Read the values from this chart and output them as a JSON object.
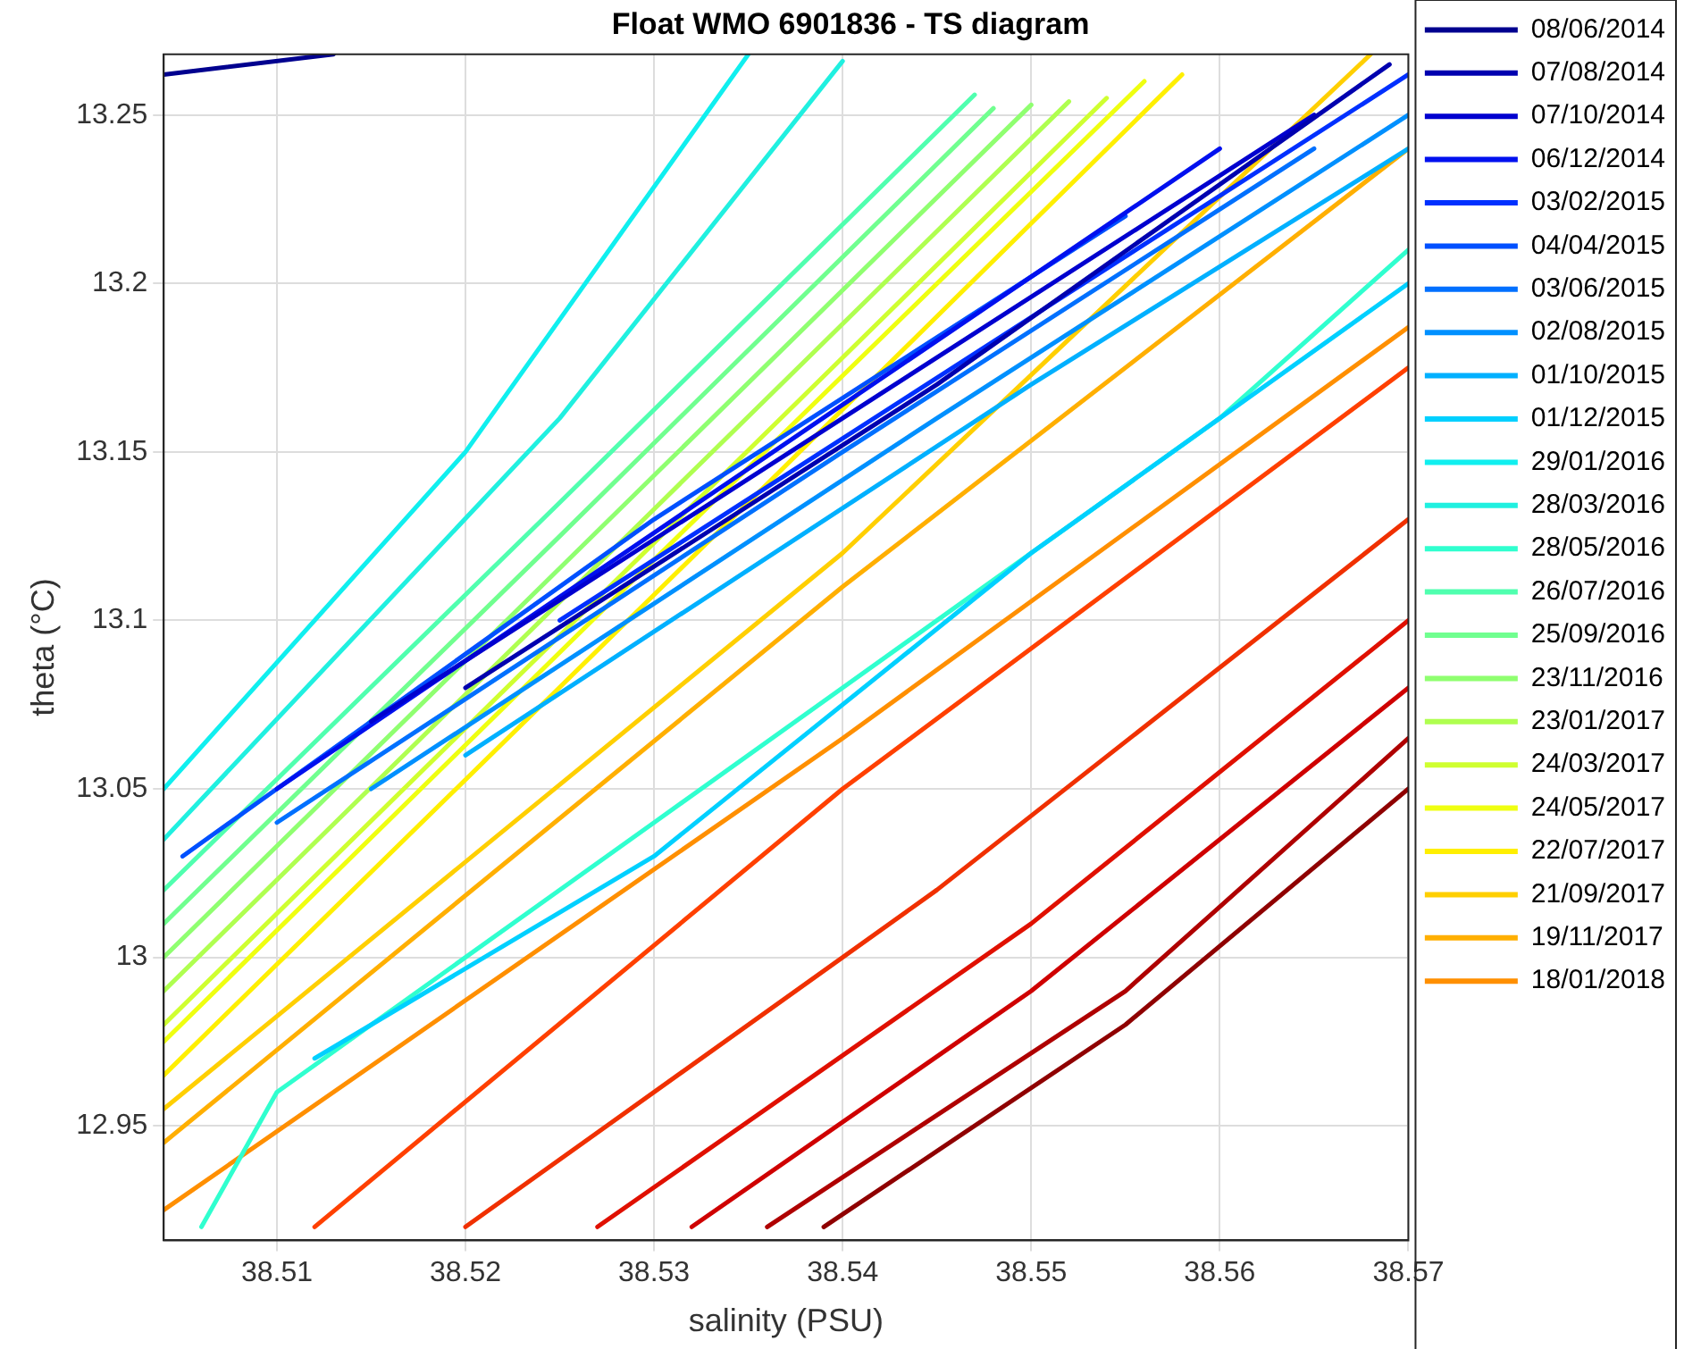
{
  "chart_data": {
    "type": "line",
    "title": "Float WMO 6901836 - TS diagram",
    "xlabel": "salinity (PSU)",
    "ylabel": "theta (°C)",
    "xlim": [
      38.504,
      38.57
    ],
    "ylim": [
      12.916,
      13.268
    ],
    "xticks": [
      38.51,
      38.52,
      38.53,
      38.54,
      38.55,
      38.56,
      38.57
    ],
    "yticks": [
      12.95,
      13,
      13.05,
      13.1,
      13.15,
      13.2,
      13.25
    ],
    "grid": true,
    "legend": "right",
    "marker": "none",
    "line_style": "solid",
    "series": [
      {
        "name": "08/06/2014",
        "color": "#00008f",
        "x": [
          38.504,
          38.513
        ],
        "values": [
          13.262,
          13.268
        ]
      },
      {
        "name": "07/08/2014",
        "color": "#0000af",
        "x": [
          38.52,
          38.545,
          38.569
        ],
        "values": [
          13.08,
          13.17,
          13.265
        ]
      },
      {
        "name": "07/10/2014",
        "color": "#0000cf",
        "x": [
          38.515,
          38.54,
          38.565
        ],
        "values": [
          13.07,
          13.16,
          13.25
        ]
      },
      {
        "name": "06/12/2014",
        "color": "#0010ef",
        "x": [
          38.51,
          38.535,
          38.56
        ],
        "values": [
          13.05,
          13.145,
          13.24
        ]
      },
      {
        "name": "03/02/2015",
        "color": "#0030ff",
        "x": [
          38.525,
          38.55,
          38.57
        ],
        "values": [
          13.1,
          13.19,
          13.262
        ]
      },
      {
        "name": "04/04/2015",
        "color": "#0050ff",
        "x": [
          38.505,
          38.53,
          38.555
        ],
        "values": [
          13.03,
          13.13,
          13.22
        ]
      },
      {
        "name": "03/06/2015",
        "color": "#0070ff",
        "x": [
          38.51,
          38.54,
          38.565
        ],
        "values": [
          13.04,
          13.15,
          13.24
        ]
      },
      {
        "name": "02/08/2015",
        "color": "#0090ff",
        "x": [
          38.515,
          38.545,
          38.57
        ],
        "values": [
          13.05,
          13.16,
          13.25
        ]
      },
      {
        "name": "01/10/2015",
        "color": "#00b0ff",
        "x": [
          38.52,
          38.55,
          38.57
        ],
        "values": [
          13.06,
          13.17,
          13.24
        ]
      },
      {
        "name": "01/12/2015",
        "color": "#00d0ff",
        "x": [
          38.512,
          38.53,
          38.55,
          38.57
        ],
        "values": [
          12.97,
          13.03,
          13.12,
          13.2
        ]
      },
      {
        "name": "29/01/2016",
        "color": "#10efef",
        "x": [
          38.504,
          38.52,
          38.535
        ],
        "values": [
          13.05,
          13.15,
          13.268
        ]
      },
      {
        "name": "28/03/2016",
        "color": "#20f0e0",
        "x": [
          38.504,
          38.525,
          38.54
        ],
        "values": [
          13.035,
          13.16,
          13.266
        ]
      },
      {
        "name": "28/05/2016",
        "color": "#30ffcf",
        "x": [
          38.506,
          38.51,
          38.53,
          38.56,
          38.57
        ],
        "values": [
          12.92,
          12.96,
          13.04,
          13.16,
          13.21
        ]
      },
      {
        "name": "26/07/2016",
        "color": "#50ffaf",
        "x": [
          38.504,
          38.525,
          38.547
        ],
        "values": [
          13.02,
          13.135,
          13.256
        ]
      },
      {
        "name": "25/09/2016",
        "color": "#70ff8f",
        "x": [
          38.504,
          38.525,
          38.548
        ],
        "values": [
          13.01,
          13.125,
          13.252
        ]
      },
      {
        "name": "23/11/2016",
        "color": "#8fff70",
        "x": [
          38.504,
          38.53,
          38.55
        ],
        "values": [
          13,
          13.143,
          13.253
        ]
      },
      {
        "name": "23/01/2017",
        "color": "#afff50",
        "x": [
          38.504,
          38.53,
          38.552
        ],
        "values": [
          12.99,
          13.133,
          13.254
        ]
      },
      {
        "name": "24/03/2017",
        "color": "#cfff30",
        "x": [
          38.504,
          38.53,
          38.554
        ],
        "values": [
          12.98,
          13.123,
          13.255
        ]
      },
      {
        "name": "24/05/2017",
        "color": "#efff10",
        "x": [
          38.504,
          38.53,
          38.556
        ],
        "values": [
          12.975,
          13.118,
          13.26
        ]
      },
      {
        "name": "22/07/2017",
        "color": "#ffef00",
        "x": [
          38.504,
          38.535,
          38.558
        ],
        "values": [
          12.965,
          13.135,
          13.262
        ]
      },
      {
        "name": "21/09/2017",
        "color": "#ffcf00",
        "x": [
          38.504,
          38.54,
          38.568
        ],
        "values": [
          12.955,
          13.12,
          13.268
        ]
      },
      {
        "name": "19/11/2017",
        "color": "#ffaf00",
        "x": [
          38.504,
          38.54,
          38.57
        ],
        "values": [
          12.945,
          13.11,
          13.24
        ]
      },
      {
        "name": "18/01/2018",
        "color": "#ff8f00",
        "x": [
          38.504,
          38.54,
          38.57
        ],
        "values": [
          12.925,
          13.065,
          13.187
        ]
      },
      {
        "color": "#ff4000",
        "x": [
          38.512,
          38.54,
          38.57
        ],
        "values": [
          12.92,
          13.05,
          13.175
        ]
      },
      {
        "color": "#f03000",
        "x": [
          38.52,
          38.545,
          38.57
        ],
        "values": [
          12.92,
          13.02,
          13.13
        ]
      },
      {
        "color": "#e01000",
        "x": [
          38.527,
          38.55,
          38.57
        ],
        "values": [
          12.92,
          13.01,
          13.1
        ]
      },
      {
        "color": "#cf0000",
        "x": [
          38.532,
          38.55,
          38.57
        ],
        "values": [
          12.92,
          12.99,
          13.08
        ]
      },
      {
        "color": "#af0000",
        "x": [
          38.536,
          38.555,
          38.57
        ],
        "values": [
          12.92,
          12.99,
          13.065
        ]
      },
      {
        "color": "#8f0000",
        "x": [
          38.539,
          38.555,
          38.57
        ],
        "values": [
          12.92,
          12.98,
          13.05
        ]
      }
    ]
  }
}
